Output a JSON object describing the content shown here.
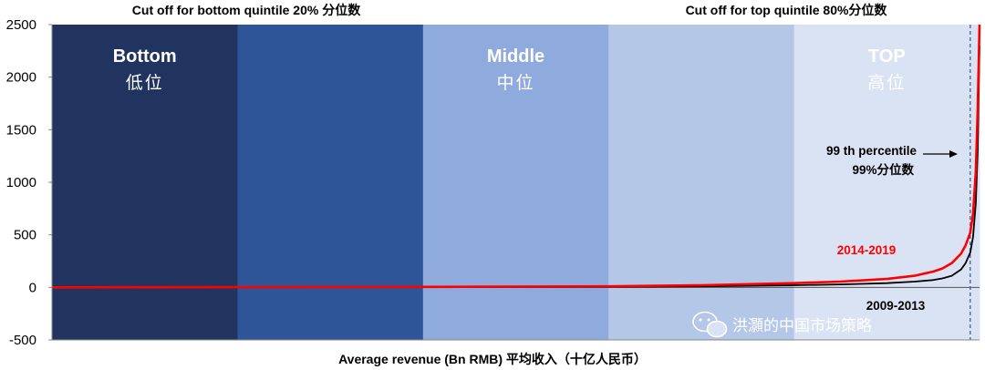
{
  "chart_data": {
    "type": "line",
    "title": "",
    "xlabel": "Average revenue (Bn RMB) 平均收入（十亿人民币）",
    "ylabel": "",
    "ylim": [
      -500,
      2500
    ],
    "yticks": [
      "2500",
      "2000",
      "1500",
      "1000",
      "500",
      "0",
      "-500"
    ],
    "x_percentile_range": [
      0,
      100
    ],
    "zones": [
      {
        "title": "Bottom",
        "subtitle": "低位",
        "color": "#20345f"
      },
      {
        "title": "",
        "subtitle": "",
        "color": "#2e5597"
      },
      {
        "title": "Middle",
        "subtitle": "中位",
        "color": "#8faadc"
      },
      {
        "title": "",
        "subtitle": "",
        "color": "#b4c7e7"
      },
      {
        "title": "TOP",
        "subtitle": "高位",
        "color": "#dae3f3"
      }
    ],
    "top_annotations": [
      {
        "text": "Cut off for bottom quintile 20% 分位数",
        "at_percentile": 20
      },
      {
        "text": "Cut off for top quintile  80%分位数",
        "at_percentile": 80
      }
    ],
    "series": [
      {
        "name": "2014-2019",
        "color": "#ff0000",
        "x": [
          0,
          20,
          40,
          60,
          70,
          80,
          85,
          90,
          93,
          95,
          96,
          97,
          98,
          98.5,
          99,
          99.3,
          99.6,
          99.8,
          100
        ],
        "y": [
          0,
          2,
          5,
          10,
          20,
          40,
          55,
          80,
          110,
          150,
          180,
          230,
          320,
          400,
          520,
          700,
          1100,
          1700,
          2500
        ]
      },
      {
        "name": "2009-2013",
        "color": "#000000",
        "x": [
          0,
          20,
          40,
          60,
          70,
          80,
          85,
          90,
          93,
          95,
          96,
          97,
          98,
          98.5,
          99,
          99.3,
          99.6,
          99.8,
          100
        ],
        "y": [
          0,
          1,
          2,
          5,
          10,
          20,
          28,
          40,
          55,
          70,
          85,
          110,
          170,
          230,
          330,
          480,
          800,
          1300,
          2300
        ]
      }
    ],
    "annotations": [
      {
        "text": "99 th percentile",
        "at_percentile": 99
      },
      {
        "text": "99%分位数",
        "at_percentile": 99
      }
    ],
    "grid": false,
    "legend": "inline labels"
  },
  "watermark": "洪灝的中国市场策略"
}
